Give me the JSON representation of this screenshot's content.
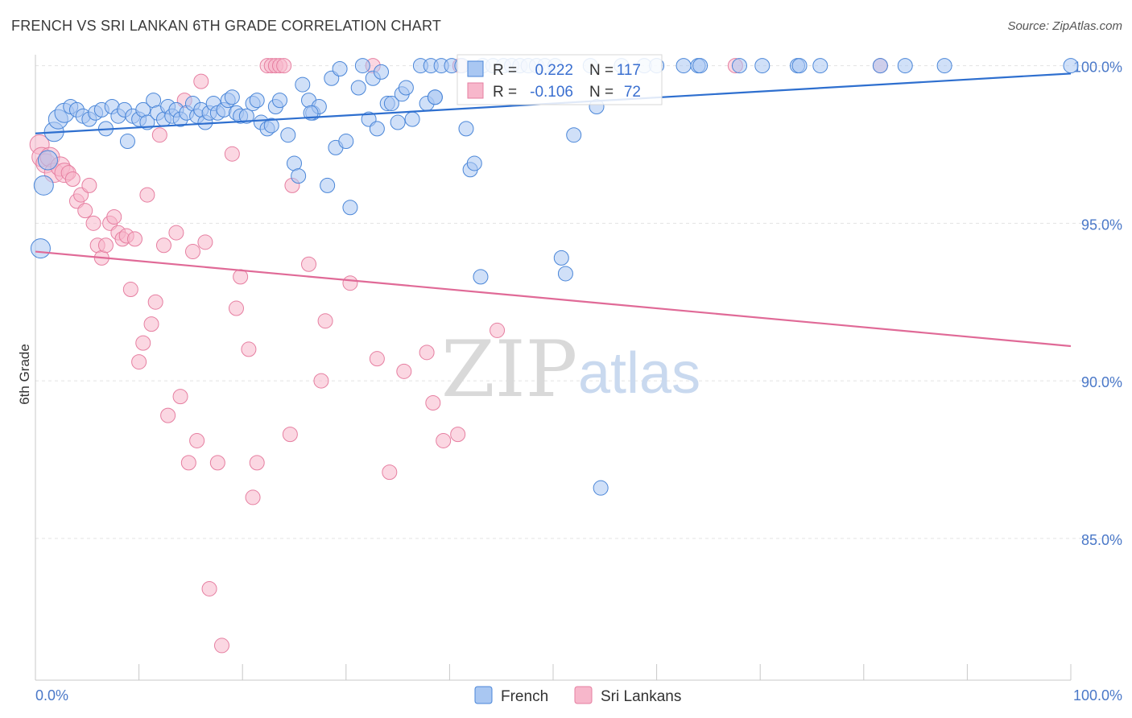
{
  "title": "FRENCH VS SRI LANKAN 6TH GRADE CORRELATION CHART",
  "source": "Source: ZipAtlas.com",
  "watermark": {
    "zip": "ZIP",
    "atlas": "atlas"
  },
  "colors": {
    "french_fill": "#a9c7f2",
    "french_stroke": "#4a86d8",
    "french_line": "#2e6fcf",
    "srilankan_fill": "#f7b7cb",
    "srilankan_stroke": "#e67fa1",
    "srilankan_line": "#e06a97",
    "tick_text": "#4a78c8",
    "grid": "#e3e3e3"
  },
  "legend_stats": [
    {
      "series": "French",
      "r_label": "R =",
      "r_value": "0.222",
      "n_label": "N =",
      "n_value": "117"
    },
    {
      "series": "Sri Lankans",
      "r_label": "R =",
      "r_value": "-0.106",
      "n_label": "N =",
      "n_value": "72"
    }
  ],
  "chart_data": {
    "type": "scatter",
    "title": "FRENCH VS SRI LANKAN 6TH GRADE CORRELATION CHART",
    "xlabel": "",
    "ylabel": "6th Grade",
    "xlim": [
      0,
      100
    ],
    "ylim": [
      80.5,
      100.5
    ],
    "x_tick_labels": [
      "0.0%",
      "100.0%"
    ],
    "y_ticks": [
      85,
      90,
      95,
      100
    ],
    "y_tick_labels": [
      "85.0%",
      "90.0%",
      "95.0%",
      "100.0%"
    ],
    "grid": "horizontal dashed",
    "legend": "bottom-center",
    "series": [
      {
        "name": "French",
        "trend": {
          "x": [
            0,
            100
          ],
          "y": [
            97.85,
            99.75
          ]
        },
        "points": [
          [
            0.5,
            94.2
          ],
          [
            0.8,
            96.2
          ],
          [
            1.2,
            97.0
          ],
          [
            1.8,
            97.9
          ],
          [
            2.2,
            98.3
          ],
          [
            2.8,
            98.5
          ],
          [
            3.4,
            98.7
          ],
          [
            4.0,
            98.6
          ],
          [
            4.6,
            98.4
          ],
          [
            5.2,
            98.3
          ],
          [
            5.8,
            98.5
          ],
          [
            6.4,
            98.6
          ],
          [
            6.8,
            98.0
          ],
          [
            7.4,
            98.7
          ],
          [
            8.0,
            98.4
          ],
          [
            8.6,
            98.6
          ],
          [
            8.9,
            97.6
          ],
          [
            9.4,
            98.4
          ],
          [
            10.0,
            98.3
          ],
          [
            10.4,
            98.6
          ],
          [
            10.8,
            98.2
          ],
          [
            11.4,
            98.9
          ],
          [
            11.8,
            98.5
          ],
          [
            12.4,
            98.3
          ],
          [
            12.8,
            98.7
          ],
          [
            13.2,
            98.4
          ],
          [
            13.6,
            98.6
          ],
          [
            14.0,
            98.3
          ],
          [
            14.6,
            98.5
          ],
          [
            15.2,
            98.8
          ],
          [
            15.6,
            98.4
          ],
          [
            16.0,
            98.6
          ],
          [
            16.4,
            98.2
          ],
          [
            16.8,
            98.5
          ],
          [
            17.2,
            98.8
          ],
          [
            17.6,
            98.5
          ],
          [
            18.2,
            98.6
          ],
          [
            18.6,
            98.9
          ],
          [
            19.0,
            99.0
          ],
          [
            19.4,
            98.5
          ],
          [
            19.8,
            98.4
          ],
          [
            20.4,
            98.4
          ],
          [
            21.0,
            98.8
          ],
          [
            21.4,
            98.9
          ],
          [
            21.8,
            98.2
          ],
          [
            22.4,
            98.0
          ],
          [
            22.8,
            98.1
          ],
          [
            23.2,
            98.7
          ],
          [
            23.6,
            98.9
          ],
          [
            24.4,
            97.8
          ],
          [
            25.0,
            96.9
          ],
          [
            25.4,
            96.5
          ],
          [
            25.8,
            99.4
          ],
          [
            26.4,
            98.9
          ],
          [
            26.8,
            98.5
          ],
          [
            27.4,
            98.7
          ],
          [
            28.2,
            96.2
          ],
          [
            28.6,
            99.6
          ],
          [
            29.0,
            97.4
          ],
          [
            29.4,
            99.9
          ],
          [
            30.0,
            97.6
          ],
          [
            30.4,
            95.5
          ],
          [
            31.2,
            99.3
          ],
          [
            31.6,
            100.0
          ],
          [
            32.2,
            98.3
          ],
          [
            32.6,
            99.6
          ],
          [
            33.0,
            98.0
          ],
          [
            33.4,
            99.8
          ],
          [
            34.0,
            98.8
          ],
          [
            34.4,
            98.8
          ],
          [
            35.0,
            98.2
          ],
          [
            35.4,
            99.1
          ],
          [
            35.8,
            99.3
          ],
          [
            36.4,
            98.3
          ],
          [
            37.2,
            100.0
          ],
          [
            37.8,
            98.8
          ],
          [
            38.2,
            100.0
          ],
          [
            38.6,
            99.0
          ],
          [
            39.2,
            100.0
          ],
          [
            40.2,
            100.0
          ],
          [
            41.2,
            100.0
          ],
          [
            41.6,
            98.0
          ],
          [
            42.0,
            96.7
          ],
          [
            42.4,
            96.9
          ],
          [
            43.2,
            100.0
          ],
          [
            44.2,
            100.0
          ],
          [
            45.2,
            100.0
          ],
          [
            46.0,
            100.0
          ],
          [
            46.8,
            100.0
          ],
          [
            47.6,
            100.0
          ],
          [
            48.4,
            100.0
          ],
          [
            49.2,
            100.0
          ],
          [
            50.2,
            100.0
          ],
          [
            50.8,
            93.9
          ],
          [
            51.2,
            93.4
          ],
          [
            52.0,
            97.8
          ],
          [
            53.6,
            100.0
          ],
          [
            54.2,
            98.7
          ],
          [
            54.6,
            86.6
          ],
          [
            56.6,
            100.0
          ],
          [
            58.8,
            100.0
          ],
          [
            60.0,
            100.0
          ],
          [
            62.6,
            100.0
          ],
          [
            64.0,
            100.0
          ],
          [
            64.2,
            100.0
          ],
          [
            68.0,
            100.0
          ],
          [
            70.2,
            100.0
          ],
          [
            73.6,
            100.0
          ],
          [
            73.8,
            100.0
          ],
          [
            75.8,
            100.0
          ],
          [
            81.6,
            100.0
          ],
          [
            84.0,
            100.0
          ],
          [
            87.8,
            100.0
          ],
          [
            100.0,
            100.0
          ],
          [
            43.0,
            93.3
          ],
          [
            38.6,
            99.0
          ],
          [
            26.6,
            98.5
          ]
        ]
      },
      {
        "name": "Sri Lankans",
        "trend": {
          "x": [
            0,
            100
          ],
          "y": [
            94.1,
            91.1
          ]
        },
        "points": [
          [
            0.4,
            97.5
          ],
          [
            0.6,
            97.1
          ],
          [
            1.0,
            96.9
          ],
          [
            1.4,
            97.1
          ],
          [
            1.8,
            96.6
          ],
          [
            2.4,
            96.8
          ],
          [
            2.8,
            96.6
          ],
          [
            3.2,
            96.6
          ],
          [
            3.6,
            96.4
          ],
          [
            4.0,
            95.7
          ],
          [
            4.4,
            95.9
          ],
          [
            4.8,
            95.4
          ],
          [
            5.2,
            96.2
          ],
          [
            5.6,
            95.0
          ],
          [
            6.0,
            94.3
          ],
          [
            6.4,
            93.9
          ],
          [
            6.8,
            94.3
          ],
          [
            7.2,
            95.0
          ],
          [
            7.6,
            95.2
          ],
          [
            8.0,
            94.7
          ],
          [
            8.4,
            94.5
          ],
          [
            8.8,
            94.6
          ],
          [
            9.2,
            92.9
          ],
          [
            9.6,
            94.5
          ],
          [
            10.0,
            90.6
          ],
          [
            10.4,
            91.2
          ],
          [
            10.8,
            95.9
          ],
          [
            11.2,
            91.8
          ],
          [
            11.6,
            92.5
          ],
          [
            12.0,
            97.8
          ],
          [
            12.4,
            94.3
          ],
          [
            12.8,
            88.9
          ],
          [
            13.6,
            94.7
          ],
          [
            14.0,
            89.5
          ],
          [
            14.4,
            98.9
          ],
          [
            14.8,
            87.4
          ],
          [
            15.2,
            94.1
          ],
          [
            15.6,
            88.1
          ],
          [
            16.0,
            99.5
          ],
          [
            16.4,
            94.4
          ],
          [
            16.8,
            83.4
          ],
          [
            17.6,
            87.4
          ],
          [
            18.0,
            81.6
          ],
          [
            19.0,
            97.2
          ],
          [
            19.4,
            92.3
          ],
          [
            19.8,
            93.3
          ],
          [
            20.6,
            91.0
          ],
          [
            21.0,
            86.3
          ],
          [
            21.4,
            87.4
          ],
          [
            22.4,
            100.0
          ],
          [
            22.8,
            100.0
          ],
          [
            23.2,
            100.0
          ],
          [
            23.6,
            100.0
          ],
          [
            24.0,
            100.0
          ],
          [
            24.6,
            88.3
          ],
          [
            24.8,
            96.2
          ],
          [
            26.4,
            93.7
          ],
          [
            27.6,
            90.0
          ],
          [
            28.0,
            91.9
          ],
          [
            30.4,
            93.1
          ],
          [
            32.6,
            100.0
          ],
          [
            33.0,
            90.7
          ],
          [
            34.2,
            87.1
          ],
          [
            35.6,
            90.3
          ],
          [
            37.8,
            90.9
          ],
          [
            38.4,
            89.3
          ],
          [
            39.4,
            88.1
          ],
          [
            40.8,
            88.3
          ],
          [
            41.0,
            100.0
          ],
          [
            44.6,
            91.6
          ],
          [
            67.6,
            100.0
          ],
          [
            81.6,
            100.0
          ]
        ]
      }
    ]
  }
}
